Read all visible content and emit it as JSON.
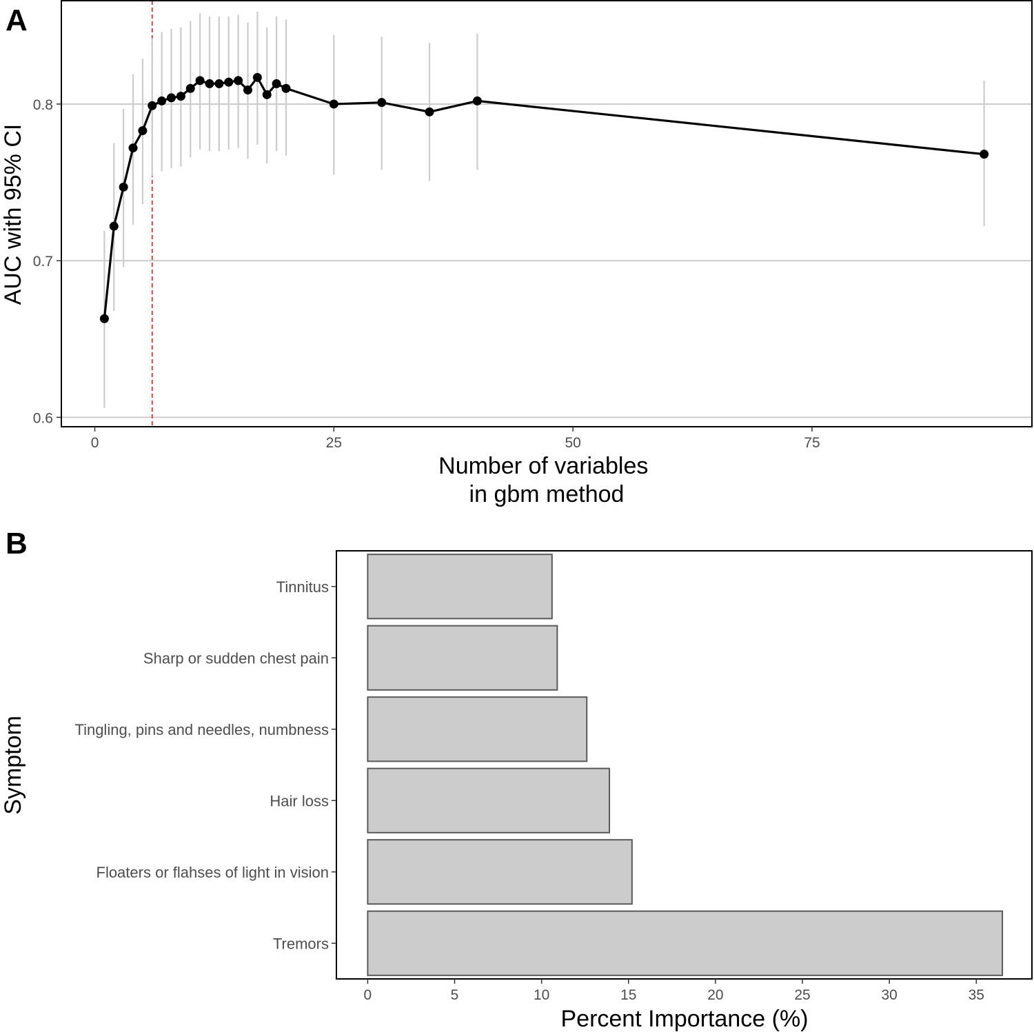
{
  "chart_data": [
    {
      "panel": "A",
      "type": "line",
      "xlabel": "Number of variables\nin gbm method",
      "ylabel": "AUC with 95% CI",
      "xlim": [
        -3.5,
        98
      ],
      "ylim": [
        0.594,
        0.866
      ],
      "xticks": [
        0,
        25,
        50,
        75
      ],
      "yticks": [
        0.6,
        0.7,
        0.8
      ],
      "ytick_labels": [
        "0.6",
        "0.7",
        "0.8"
      ],
      "grid": "horizontal major",
      "reference_line": {
        "x": 6,
        "style": "dashed",
        "color": "#e8302f"
      },
      "colors": {
        "line": "#000000",
        "errorbar": "#cccccc",
        "grid": "#cccccc"
      },
      "series": [
        {
          "x": [
            1,
            2,
            3,
            4,
            5,
            6,
            7,
            8,
            9,
            10,
            11,
            12,
            13,
            14,
            15,
            16,
            17,
            18,
            19,
            20,
            25,
            30,
            35,
            40,
            93
          ],
          "y": [
            0.663,
            0.722,
            0.747,
            0.772,
            0.783,
            0.799,
            0.802,
            0.804,
            0.805,
            0.81,
            0.815,
            0.813,
            0.813,
            0.814,
            0.815,
            0.809,
            0.817,
            0.806,
            0.813,
            0.81,
            0.8,
            0.801,
            0.795,
            0.802,
            0.768
          ],
          "lower": [
            0.606,
            0.668,
            0.696,
            0.723,
            0.736,
            0.754,
            0.757,
            0.759,
            0.76,
            0.766,
            0.771,
            0.77,
            0.77,
            0.771,
            0.772,
            0.765,
            0.774,
            0.762,
            0.77,
            0.767,
            0.755,
            0.758,
            0.751,
            0.758,
            0.722
          ],
          "upper": [
            0.719,
            0.775,
            0.797,
            0.819,
            0.829,
            0.842,
            0.846,
            0.848,
            0.849,
            0.853,
            0.858,
            0.856,
            0.856,
            0.856,
            0.857,
            0.852,
            0.859,
            0.849,
            0.856,
            0.854,
            0.844,
            0.843,
            0.839,
            0.845,
            0.815
          ]
        }
      ]
    },
    {
      "panel": "B",
      "type": "bar",
      "orientation": "horizontal",
      "xlabel": "Percent Importance (%)",
      "ylabel": "Symptom",
      "xlim": [
        -1.8,
        38.2
      ],
      "xticks": [
        0,
        5,
        10,
        15,
        20,
        25,
        30,
        35
      ],
      "categories": [
        "Tinnitus",
        "Sharp or sudden chest pain",
        "Tingling, pins and needles, numbness",
        "Hair loss",
        "Floaters or flahses of light in vision",
        "Tremors"
      ],
      "values": [
        10.6,
        10.9,
        12.6,
        13.9,
        15.2,
        36.5
      ],
      "colors": {
        "bar_fill": "#cccccc",
        "bar_stroke": "#595959"
      }
    }
  ]
}
